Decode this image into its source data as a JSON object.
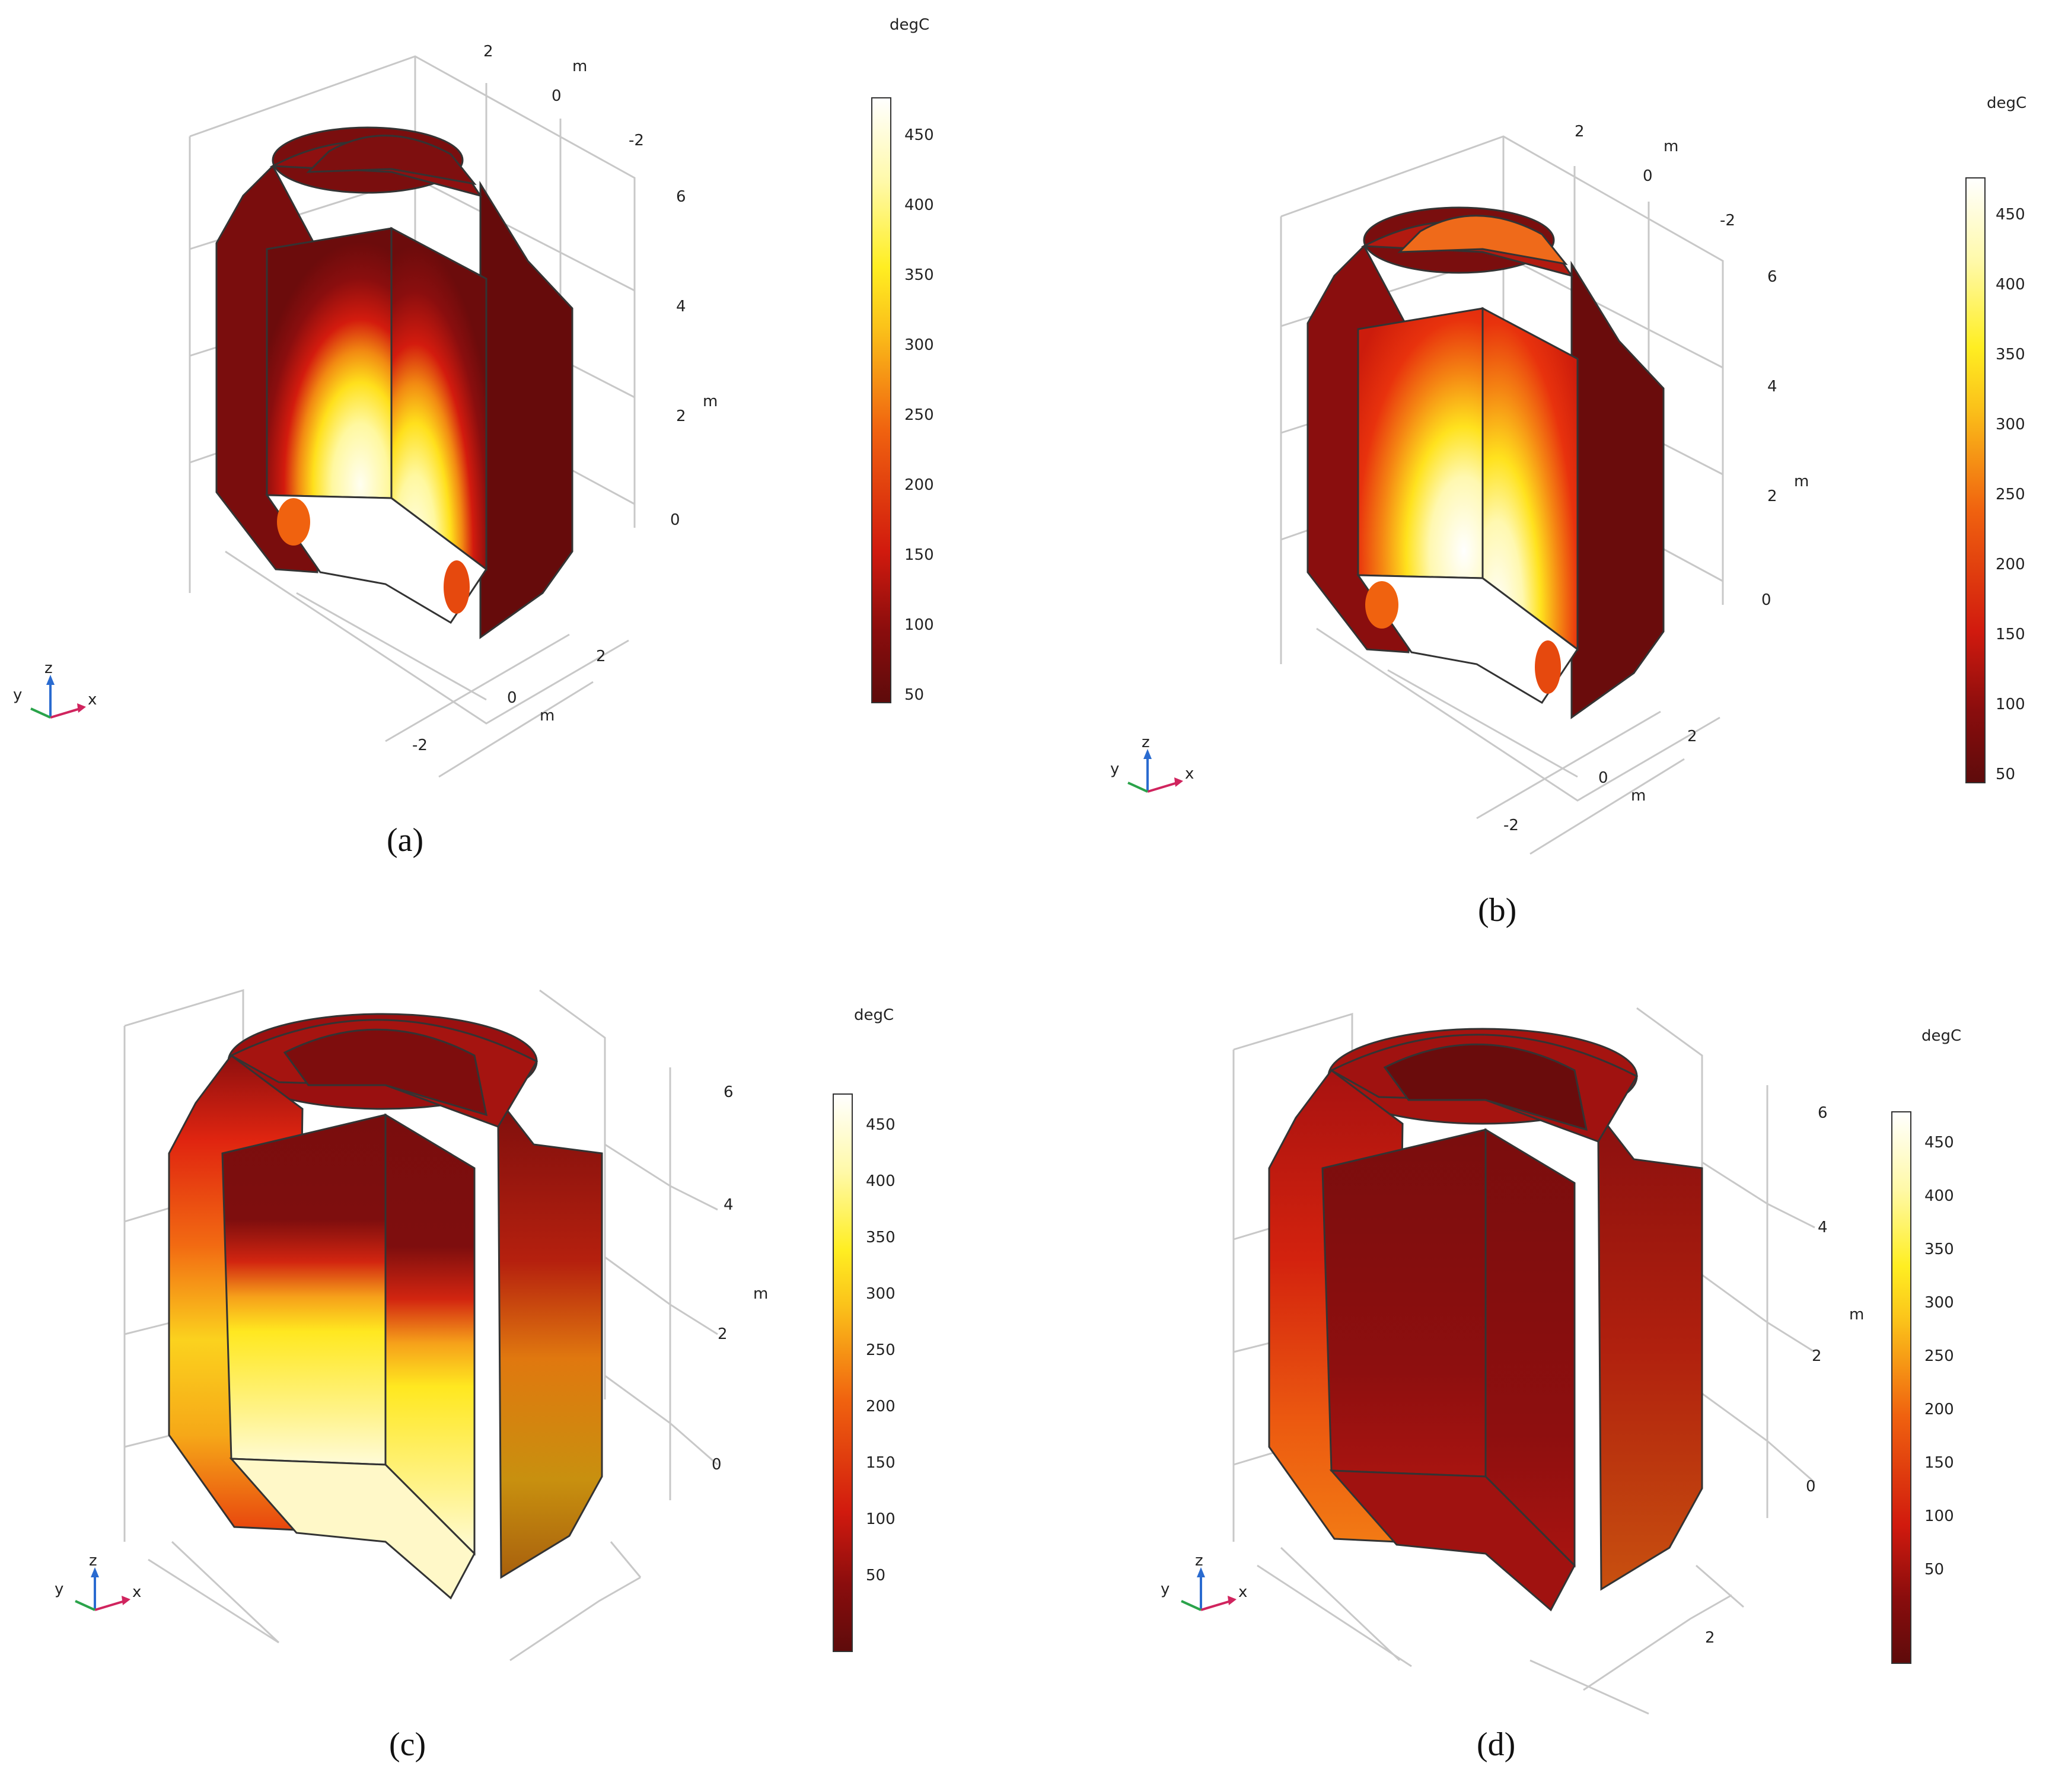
{
  "panels": [
    {
      "caption": "(a)",
      "colorbar": {
        "unit": "degC",
        "ticks": [
          "450",
          "400",
          "350",
          "300",
          "250",
          "200",
          "150",
          "100",
          "50"
        ]
      },
      "axes": {
        "z_ticks": [
          "6",
          "4",
          "2",
          "0"
        ],
        "z_unit": "m",
        "x_ticks": [
          "2",
          "0",
          "-2"
        ],
        "x_unit": "m",
        "y_ticks": [
          "2",
          "0",
          "-2"
        ],
        "y_unit": "m"
      },
      "triad": {
        "x": "x",
        "y": "y",
        "z": "z"
      }
    },
    {
      "caption": "(b)",
      "colorbar": {
        "unit": "degC",
        "ticks": [
          "450",
          "400",
          "350",
          "300",
          "250",
          "200",
          "150",
          "100",
          "50"
        ]
      },
      "axes": {
        "z_ticks": [
          "6",
          "4",
          "2",
          "0"
        ],
        "z_unit": "m",
        "x_ticks": [
          "2",
          "0",
          "-2"
        ],
        "x_unit": "m",
        "y_ticks": [
          "2",
          "0",
          "-2"
        ],
        "y_unit": "m"
      },
      "triad": {
        "x": "x",
        "y": "y",
        "z": "z"
      }
    },
    {
      "caption": "(c)",
      "colorbar": {
        "unit": "degC",
        "ticks": [
          "450",
          "400",
          "350",
          "300",
          "250",
          "200",
          "150",
          "100",
          "50"
        ]
      },
      "axes": {
        "z_ticks": [
          "6",
          "4",
          "2",
          "0"
        ],
        "z_unit": "m"
      },
      "triad": {
        "x": "x",
        "y": "y",
        "z": "z"
      }
    },
    {
      "caption": "(d)",
      "colorbar": {
        "unit": "degC",
        "ticks": [
          "450",
          "400",
          "350",
          "300",
          "250",
          "200",
          "150",
          "100",
          "50"
        ]
      },
      "axes": {
        "z_ticks": [
          "6",
          "4",
          "2",
          "0"
        ],
        "z_unit": "m",
        "y_ticks": [
          "2"
        ]
      },
      "triad": {
        "x": "x",
        "y": "y",
        "z": "z"
      }
    }
  ],
  "colors": {
    "cold": "#5e0b0b",
    "warm": "#c81b0d",
    "mid": "#ef5a0c",
    "hot": "#ffd21a",
    "hottest": "#fffbe6"
  }
}
